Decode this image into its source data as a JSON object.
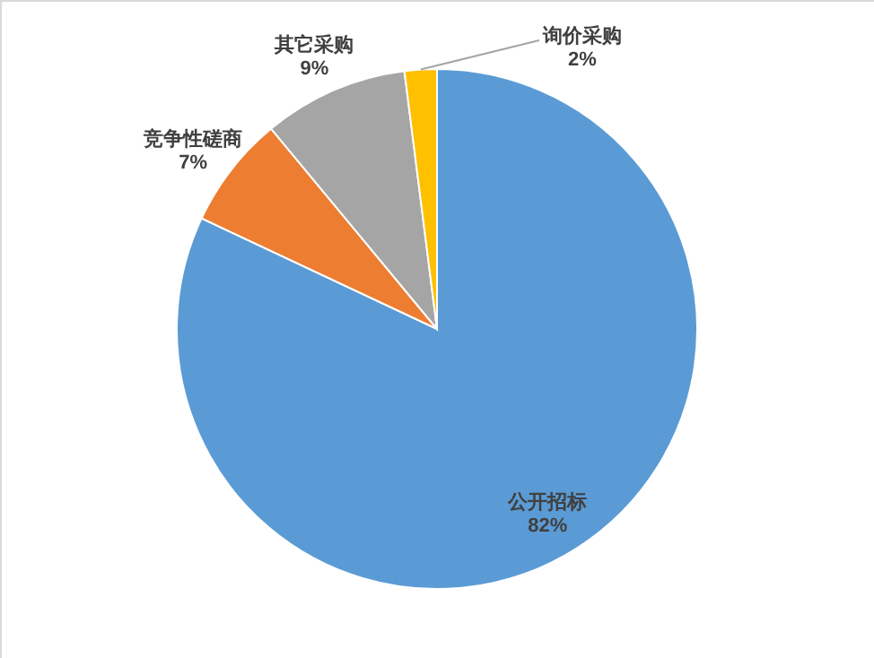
{
  "chart_data": {
    "type": "pie",
    "categories": [
      "公开招标",
      "竞争性磋商",
      "其它采购",
      "询价采购"
    ],
    "values": [
      82,
      7,
      9,
      2
    ],
    "colors": [
      "#5b9bd5",
      "#ed7d31",
      "#a5a5a5",
      "#ffc000"
    ],
    "value_labels": [
      "82%",
      "7%",
      "9%",
      "2%"
    ]
  }
}
